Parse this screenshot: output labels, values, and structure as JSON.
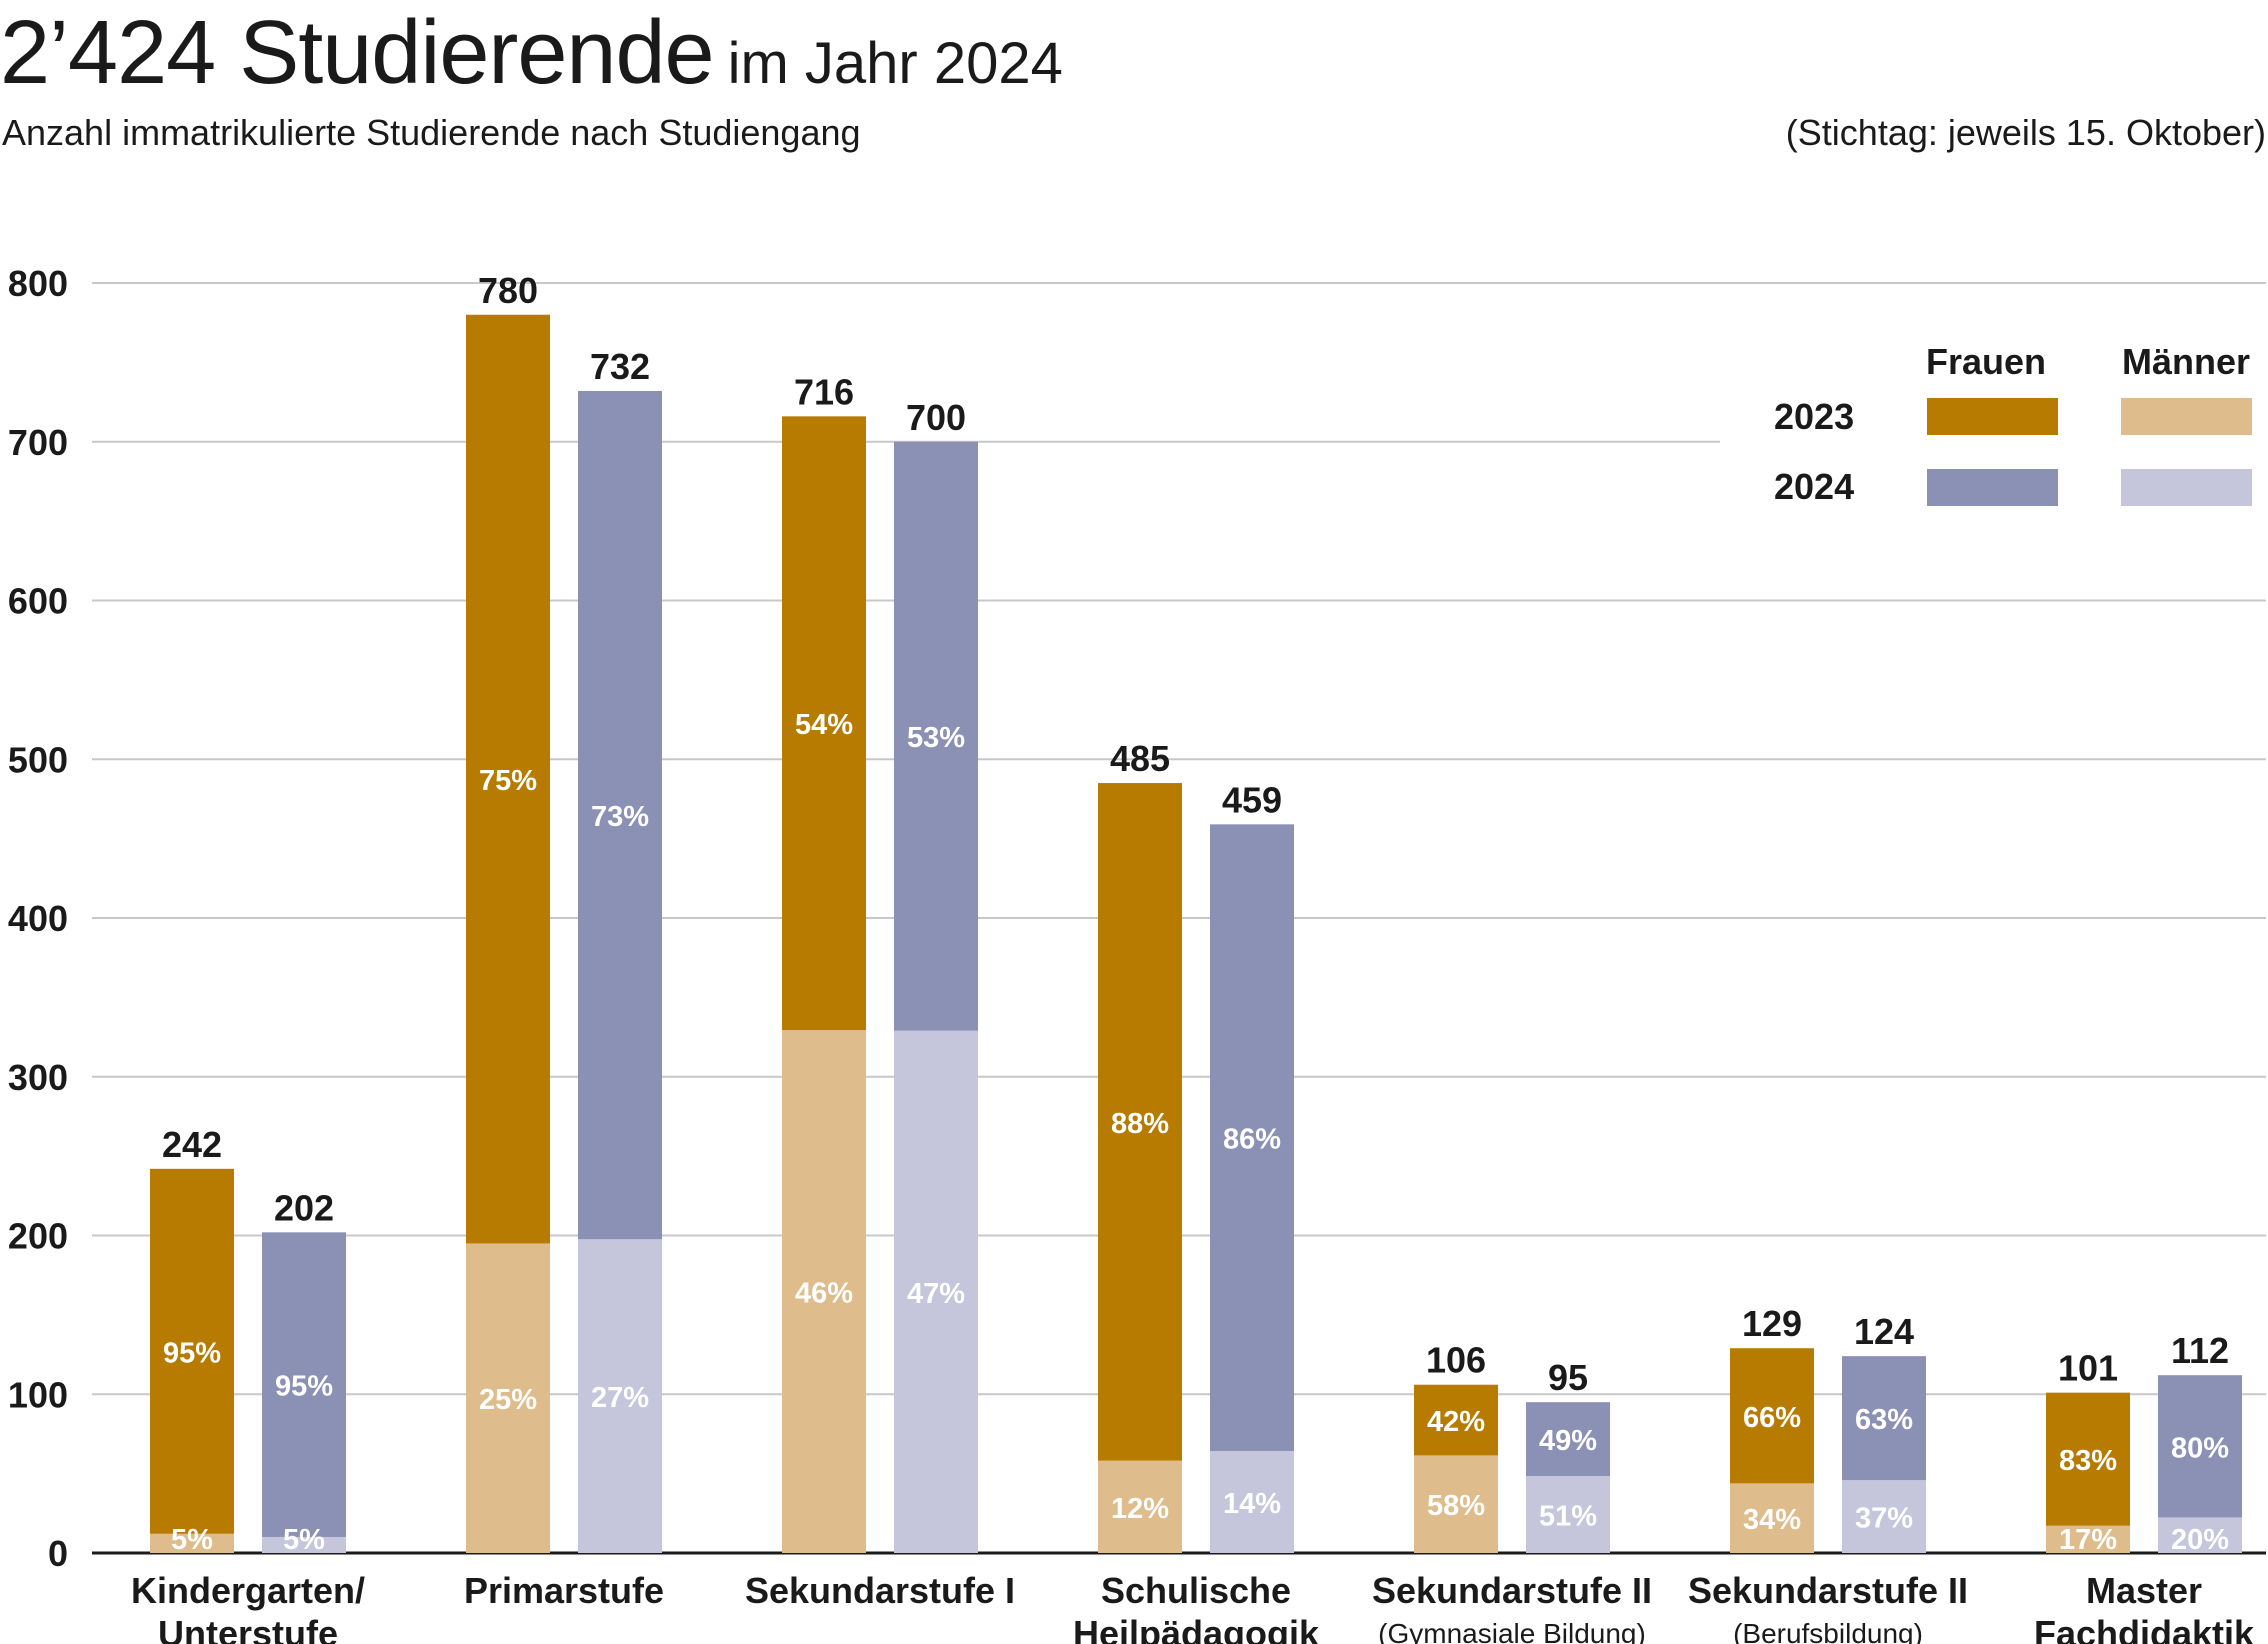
{
  "header": {
    "title_main": "2’424 Studierende",
    "title_sub": "im Jahr 2024",
    "subtitle": "Anzahl immatrikulierte Studierende nach Studiengang",
    "note": "(Stichtag: jeweils 15. Oktober)"
  },
  "legend": {
    "col_women": "Frauen",
    "col_men": "Männer",
    "row_2023": "2023",
    "row_2024": "2024"
  },
  "colors": {
    "women_2023": "#b67b00",
    "men_2023": "#dfbc8c",
    "women_2024": "#8b90b5",
    "men_2024": "#c5c6dc",
    "grid": "#c8c8c8"
  },
  "chart_data": {
    "type": "bar",
    "stacked": true,
    "ylim": [
      0,
      800
    ],
    "yticks": [
      0,
      100,
      200,
      300,
      400,
      500,
      600,
      700,
      800
    ],
    "grid": true,
    "legend_position": "top-right",
    "categories": [
      {
        "line1": "Kindergarten/",
        "line2": "Unterstufe",
        "small": ""
      },
      {
        "line1": "Primarstufe",
        "line2": "",
        "small": ""
      },
      {
        "line1": "Sekundarstufe I",
        "line2": "",
        "small": ""
      },
      {
        "line1": "Schulische",
        "line2": "Heilpädagogik",
        "small": ""
      },
      {
        "line1": "Sekundarstufe II",
        "line2": "",
        "small": "(Gymnasiale Bildung)"
      },
      {
        "line1": "Sekundarstufe II",
        "line2": "",
        "small": "(Berufsbildung)"
      },
      {
        "line1": "Master",
        "line2": "Fachdidaktik",
        "small": ""
      }
    ],
    "series": [
      {
        "name": "2023",
        "totals": [
          242,
          780,
          716,
          485,
          106,
          129,
          101
        ],
        "women_pct": [
          "95%",
          "75%",
          "54%",
          "88%",
          "42%",
          "66%",
          "83%"
        ],
        "men_pct": [
          "5%",
          "25%",
          "46%",
          "12%",
          "58%",
          "34%",
          "17%"
        ],
        "women_share": [
          0.95,
          0.75,
          0.54,
          0.88,
          0.42,
          0.66,
          0.83
        ]
      },
      {
        "name": "2024",
        "totals": [
          202,
          732,
          700,
          459,
          95,
          124,
          112
        ],
        "women_pct": [
          "95%",
          "73%",
          "53%",
          "86%",
          "49%",
          "63%",
          "80%"
        ],
        "men_pct": [
          "5%",
          "27%",
          "47%",
          "14%",
          "51%",
          "37%",
          "20%"
        ],
        "women_share": [
          0.95,
          0.73,
          0.53,
          0.86,
          0.49,
          0.63,
          0.8
        ]
      }
    ]
  }
}
